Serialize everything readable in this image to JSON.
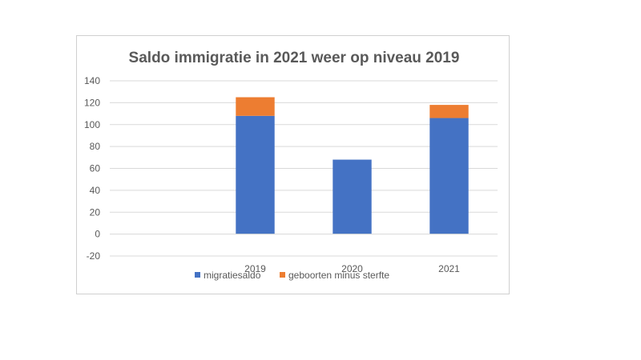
{
  "chart_data": {
    "type": "bar",
    "stacked": true,
    "title": "Saldo immigratie in 2021 weer op niveau 2019",
    "xlabel": "",
    "ylabel": "",
    "categories": [
      "",
      "2019",
      "2020",
      "2021"
    ],
    "series": [
      {
        "name": "migratiesaldo",
        "color": "#4472C4",
        "values": [
          0,
          108,
          68,
          106
        ]
      },
      {
        "name": "geboorten minus sterfte",
        "color": "#ED7D31",
        "values": [
          0,
          17,
          0,
          12
        ]
      }
    ],
    "ylim": [
      -20,
      140
    ],
    "yticks": [
      "-20",
      "0",
      "20",
      "40",
      "60",
      "80",
      "100",
      "120",
      "140"
    ],
    "ytick_values": [
      -20,
      0,
      20,
      40,
      60,
      80,
      100,
      120,
      140
    ],
    "grid": true,
    "legend": "bottom"
  }
}
